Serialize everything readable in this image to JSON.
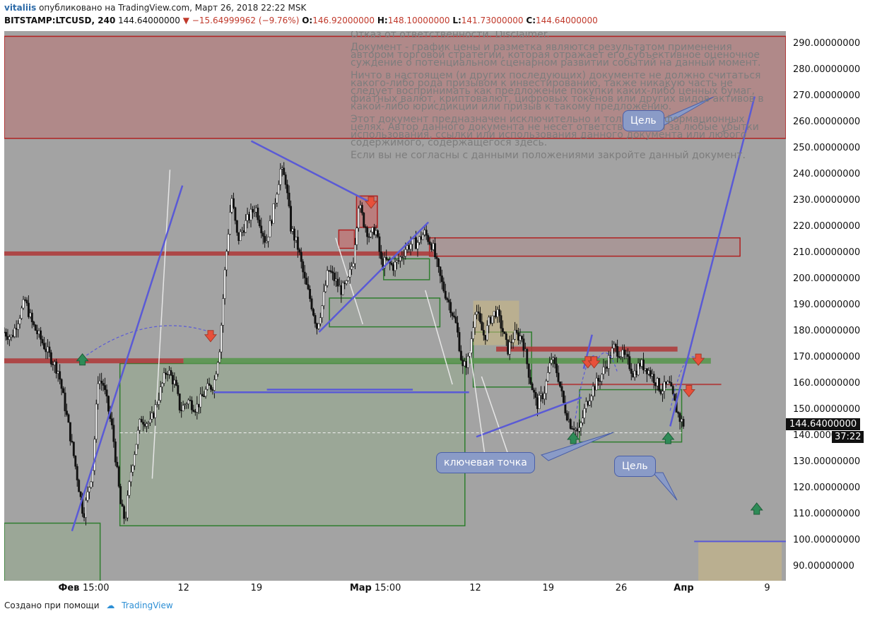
{
  "header": {
    "author": "vitaliis",
    "published_text": "опубликовано на TradingView.com, Март 26, 2018 22:22 MSK",
    "symbol": "BITSTAMP:LTCUSD, 240",
    "last": "144.64000000",
    "change": "▼ −15.64999962 (−9.76%)",
    "o_label": "O:",
    "o_value": "146.92000000",
    "h_label": "H:",
    "h_value": "148.10000000",
    "l_label": "L:",
    "l_value": "141.73000000",
    "c_label": "C:",
    "c_value": "144.64000000"
  },
  "disclaimer": {
    "p1": "Отказ от ответственности. Disclaimer.",
    "p2": "Документ - график цены и разметка являются результатом применения автором торговой стратегии, которая отражает его субъективное оценочное суждение о потенциальном сценарном развитии событий на данный момент.",
    "p3": "Ничто в настоящем (и других последующих) документе не должно считаться какого-либо рода призывом к инвестированию, также никакую часть не следует воспринимать как предложение покупки каких-либо ценных бумаг, фиатных валют, криптовалют, цифровых токенов или других видов активов в какой-либо юрисдикции или призыв к такому предложению.",
    "p4": "Этот документ предназначен исключительно и только в информационных целях. Автор данного документа не несет ответственности за любые убытки использования, ссылки или использования данного документа или любого содержимого, содержащегося здесь.",
    "p5": "Если вы не согласны с данными положениями закройте данный документ."
  },
  "callouts": {
    "target_top": "Цель",
    "target_bottom": "Цель",
    "key_point": "ключевая точка"
  },
  "price_tag": "144.64000000",
  "timer_tag": "37:22",
  "footer": {
    "created_with": "Создано при помощи",
    "brand": "TradingView"
  },
  "colors": {
    "background": "#a3a3a3",
    "candle_up": "#ffffff",
    "candle_down": "#111111",
    "trendline": "#5a5ad6",
    "zone_red": "#b02020",
    "zone_green": "#2f7d2f",
    "arrow_up": "#2e8b57",
    "arrow_down": "#e8503a"
  },
  "chart_data": {
    "type": "candlestick",
    "symbol": "BITSTAMP:LTCUSD",
    "timeframe": "240",
    "ylim": [
      85,
      295
    ],
    "y_ticks": [
      "290.00000000",
      "280.00000000",
      "270.00000000",
      "260.00000000",
      "250.00000000",
      "240.00000000",
      "230.00000000",
      "220.00000000",
      "210.00000000",
      "200.00000000",
      "190.00000000",
      "180.00000000",
      "170.00000000",
      "160.00000000",
      "150.00000000",
      "140.00000000",
      "130.00000000",
      "120.00000000",
      "110.00000000",
      "100.00000000",
      "90.00000000"
    ],
    "y_tick_values": [
      290,
      280,
      270,
      260,
      250,
      240,
      230,
      220,
      210,
      200,
      190,
      180,
      170,
      160,
      150,
      140,
      130,
      120,
      110,
      100,
      90
    ],
    "x_ticks": [
      {
        "label": "Фев",
        "day": 0,
        "bold": true
      },
      {
        "label": "15:00",
        "day": 2.6,
        "bold": false
      },
      {
        "label": "12",
        "day": 11,
        "bold": false
      },
      {
        "label": "19",
        "day": 18,
        "bold": false
      },
      {
        "label": "Мар",
        "day": 28,
        "bold": true
      },
      {
        "label": "15:00",
        "day": 30.6,
        "bold": false
      },
      {
        "label": "12",
        "day": 39,
        "bold": false
      },
      {
        "label": "19",
        "day": 46,
        "bold": false
      },
      {
        "label": "26",
        "day": 53,
        "bold": false
      },
      {
        "label": "Апр",
        "day": 59,
        "bold": true
      },
      {
        "label": "9",
        "day": 67,
        "bold": false
      }
    ],
    "x_day_range": [
      -6.2,
      68.8
    ],
    "last_price": 144.64,
    "path_anchors": [
      [
        -6.2,
        180
      ],
      [
        -5.5,
        178
      ],
      [
        -4.2,
        192
      ],
      [
        -3.5,
        183
      ],
      [
        -2.8,
        178
      ],
      [
        -2.0,
        172
      ],
      [
        -1.0,
        165
      ],
      [
        -0.3,
        150
      ],
      [
        0.5,
        132
      ],
      [
        1.4,
        110
      ],
      [
        2.3,
        128
      ],
      [
        2.8,
        162
      ],
      [
        3.3,
        160
      ],
      [
        4.2,
        142
      ],
      [
        5.0,
        113
      ],
      [
        5.4,
        108
      ],
      [
        6.0,
        128
      ],
      [
        6.9,
        147
      ],
      [
        7.8,
        145
      ],
      [
        8.6,
        155
      ],
      [
        9.4,
        166
      ],
      [
        10.2,
        160
      ],
      [
        10.7,
        150
      ],
      [
        11.4,
        154
      ],
      [
        12.2,
        151
      ],
      [
        13.2,
        158
      ],
      [
        13.9,
        160
      ],
      [
        14.5,
        175
      ],
      [
        15.0,
        205
      ],
      [
        15.6,
        232
      ],
      [
        16.2,
        215
      ],
      [
        17.0,
        222
      ],
      [
        17.9,
        228
      ],
      [
        18.9,
        214
      ],
      [
        19.6,
        226
      ],
      [
        20.3,
        242
      ],
      [
        20.8,
        238
      ],
      [
        21.3,
        220
      ],
      [
        22.0,
        212
      ],
      [
        22.6,
        200
      ],
      [
        23.2,
        192
      ],
      [
        23.8,
        182
      ],
      [
        24.3,
        190
      ],
      [
        24.9,
        204
      ],
      [
        25.5,
        200
      ],
      [
        26.1,
        196
      ],
      [
        26.7,
        198
      ],
      [
        27.3,
        208
      ],
      [
        27.8,
        229
      ],
      [
        28.3,
        222
      ],
      [
        28.9,
        216
      ],
      [
        29.4,
        220
      ],
      [
        30.0,
        206
      ],
      [
        30.5,
        207
      ],
      [
        31.1,
        205
      ],
      [
        31.6,
        207
      ],
      [
        32.3,
        212
      ],
      [
        32.9,
        214
      ],
      [
        33.4,
        214
      ],
      [
        34.1,
        218
      ],
      [
        34.9,
        213
      ],
      [
        35.4,
        204
      ],
      [
        35.9,
        197
      ],
      [
        36.6,
        190
      ],
      [
        37.2,
        182
      ],
      [
        37.8,
        166
      ],
      [
        38.4,
        170
      ],
      [
        39.0,
        190
      ],
      [
        39.5,
        182
      ],
      [
        39.9,
        178
      ],
      [
        40.4,
        185
      ],
      [
        41.0,
        188
      ],
      [
        41.6,
        181
      ],
      [
        42.1,
        173
      ],
      [
        42.7,
        179
      ],
      [
        43.5,
        178
      ],
      [
        44.2,
        163
      ],
      [
        44.9,
        152
      ],
      [
        45.6,
        157
      ],
      [
        46.3,
        170
      ],
      [
        46.9,
        164
      ],
      [
        47.5,
        152
      ],
      [
        48.1,
        145
      ],
      [
        48.5,
        144
      ],
      [
        48.9,
        141
      ],
      [
        49.6,
        152
      ],
      [
        50.2,
        158
      ],
      [
        50.9,
        162
      ],
      [
        51.6,
        168
      ],
      [
        52.3,
        174
      ],
      [
        52.9,
        172
      ],
      [
        53.6,
        169
      ],
      [
        54.2,
        164
      ],
      [
        54.8,
        168
      ],
      [
        55.5,
        166
      ],
      [
        56.2,
        162
      ],
      [
        56.8,
        158
      ],
      [
        57.6,
        160
      ],
      [
        58.1,
        153
      ],
      [
        58.6,
        147
      ],
      [
        59.0,
        144.64
      ]
    ],
    "trendlines": [
      [
        [
          0.3,
          104
        ],
        [
          10.9,
          236
        ]
      ],
      [
        [
          17.5,
          253
        ],
        [
          29.2,
          229
        ]
      ],
      [
        [
          24.0,
          180
        ],
        [
          34.5,
          222
        ]
      ],
      [
        [
          39.1,
          140
        ],
        [
          49.2,
          155
        ]
      ],
      [
        [
          49.4,
          166
        ],
        [
          50.2,
          179
        ]
      ],
      [
        [
          57.7,
          144
        ],
        [
          65.8,
          270
        ]
      ],
      [
        [
          13.9,
          157
        ],
        [
          38.4,
          157
        ]
      ],
      [
        [
          19.0,
          158
        ],
        [
          33.0,
          158
        ]
      ]
    ],
    "horizontal_zones": [
      {
        "kind": "red",
        "y_top": 293,
        "y_bottom": 254,
        "x_from": -6.2,
        "x_to": 68.8
      },
      {
        "kind": "red_outline",
        "y_top": 216,
        "y_bottom": 209,
        "x_from": 34.6,
        "x_to": 64.4
      },
      {
        "kind": "green",
        "y_top": 168,
        "y_bottom": 106,
        "x_from": 4.9,
        "x_to": 38.0
      },
      {
        "kind": "green",
        "y_top": 107,
        "y_bottom": 80,
        "x_from": -6.2,
        "x_to": 3.0
      },
      {
        "kind": "green_box",
        "y_top": 193,
        "y_bottom": 182,
        "x_from": 25.0,
        "x_to": 35.6
      },
      {
        "kind": "green_box",
        "y_top": 208,
        "y_bottom": 200,
        "x_from": 30.2,
        "x_to": 34.6
      },
      {
        "kind": "green_box",
        "y_top": 180,
        "y_bottom": 159,
        "x_from": 38.8,
        "x_to": 44.4
      },
      {
        "kind": "green_box",
        "y_top": 158,
        "y_bottom": 138,
        "x_from": 49.0,
        "x_to": 58.8
      },
      {
        "kind": "tan",
        "y_top": 192,
        "y_bottom": 175,
        "x_from": 38.8,
        "x_to": 43.2
      },
      {
        "kind": "tan",
        "y_top": 100,
        "y_bottom": 85,
        "x_from": 60.4,
        "x_to": 68.4
      },
      {
        "kind": "red_box",
        "y_top": 232,
        "y_bottom": 220,
        "x_from": 27.6,
        "x_to": 29.6
      },
      {
        "kind": "red_box",
        "y_top": 219,
        "y_bottom": 212,
        "x_from": 25.9,
        "x_to": 27.4
      }
    ],
    "horizontal_lines": [
      {
        "kind": "red_thick",
        "y": 210,
        "x_from": -6.2,
        "x_to": 35.0
      },
      {
        "kind": "red_thick",
        "y": 169,
        "x_from": -6.2,
        "x_to": 11.0
      },
      {
        "kind": "green_thick",
        "y": 169,
        "x_from": 11.0,
        "x_to": 61.6
      },
      {
        "kind": "red_thick",
        "y": 173.5,
        "x_from": 41.0,
        "x_to": 58.4
      },
      {
        "kind": "red_thin",
        "y": 160,
        "x_from": 45.8,
        "x_to": 62.6
      },
      {
        "kind": "purple_thin",
        "y": 100,
        "x_from": 60.0,
        "x_to": 69.0
      },
      {
        "kind": "dashed_white",
        "y": 141.5,
        "x_from": 4.9,
        "x_to": 58.8
      }
    ],
    "arrows": [
      {
        "dir": "up",
        "day": 1.3,
        "price": 169
      },
      {
        "dir": "down",
        "day": 13.6,
        "price": 179
      },
      {
        "dir": "down",
        "day": 29.0,
        "price": 230
      },
      {
        "dir": "up",
        "day": 48.4,
        "price": 139
      },
      {
        "dir": "down",
        "day": 49.8,
        "price": 169
      },
      {
        "dir": "down",
        "day": 50.4,
        "price": 169
      },
      {
        "dir": "up",
        "day": 57.5,
        "price": 139
      },
      {
        "dir": "down",
        "day": 59.5,
        "price": 158
      },
      {
        "dir": "down",
        "day": 60.4,
        "price": 170
      },
      {
        "dir": "up",
        "day": 66.0,
        "price": 112
      }
    ]
  }
}
